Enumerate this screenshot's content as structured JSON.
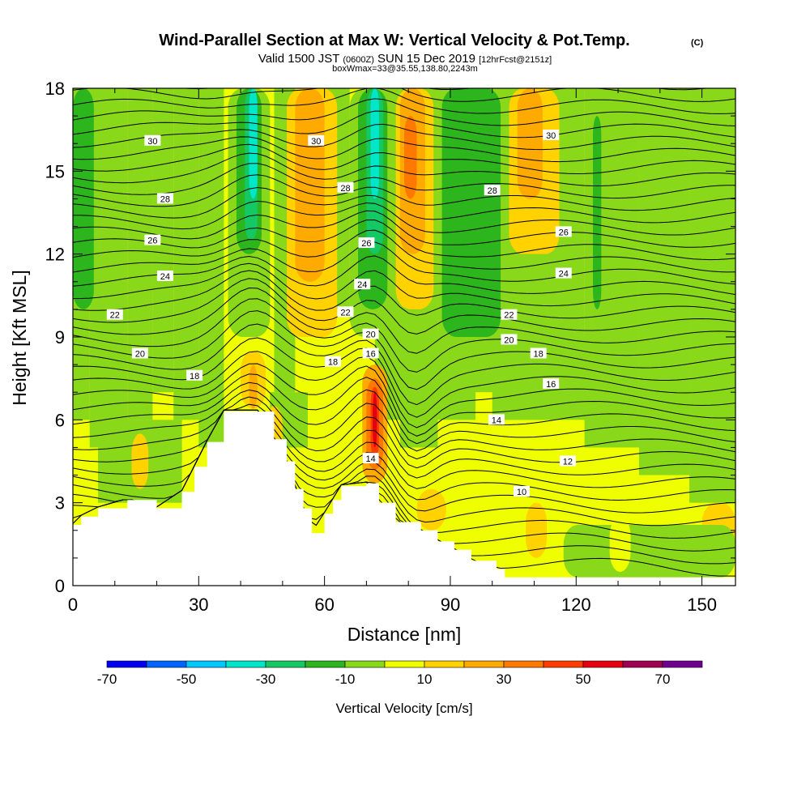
{
  "header": {
    "title": "Wind-Parallel Section at Max W: Vertical Velocity & Pot.Temp.",
    "copyright": "(C)",
    "valid_main": "Valid 1500 JST",
    "valid_utc": "(0600Z)",
    "valid_date": "SUN 15 Dec 2019",
    "forecast": "[12hrFcst@2151z]",
    "box_info": "boxWmax=33@35.55,138.80,2243m"
  },
  "chart_data": {
    "type": "heatmap",
    "xlabel": "Distance [nm]",
    "ylabel": "Height [Kft MSL]",
    "xlim": [
      0,
      158
    ],
    "ylim": [
      0,
      18
    ],
    "x_ticks": [
      "0",
      "30",
      "60",
      "90",
      "120",
      "150"
    ],
    "y_ticks": [
      "0",
      "3",
      "6",
      "9",
      "12",
      "15",
      "18"
    ],
    "x_minor_step": 10,
    "y_minor_step": 1,
    "colorbar": {
      "title": "Vertical Velocity [cm/s]",
      "levels": [
        -70,
        -60,
        -50,
        -40,
        -30,
        -20,
        -10,
        0,
        10,
        20,
        30,
        40,
        50,
        60,
        70,
        80
      ],
      "labels": [
        "-70",
        "-50",
        "-30",
        "-10",
        "10",
        "30",
        "50",
        "70"
      ],
      "colors": [
        "#0000f0",
        "#0064ff",
        "#00c8ff",
        "#00e6c8",
        "#14c864",
        "#2db51e",
        "#8ad81a",
        "#f0ff00",
        "#ffd200",
        "#ffaa00",
        "#ff7800",
        "#ff3c00",
        "#e6000f",
        "#a00050",
        "#700090"
      ]
    },
    "terrain_profile": [
      [
        0,
        2.2
      ],
      [
        2,
        2.5
      ],
      [
        6,
        2.8
      ],
      [
        13,
        3.1
      ],
      [
        20,
        2.8
      ],
      [
        26,
        3.4
      ],
      [
        29,
        4.3
      ],
      [
        32,
        5.2
      ],
      [
        36,
        6.3
      ],
      [
        45,
        6.3
      ],
      [
        48,
        5.3
      ],
      [
        51,
        4.5
      ],
      [
        53,
        3.5
      ],
      [
        55,
        2.8
      ],
      [
        57,
        1.9
      ],
      [
        60,
        2.6
      ],
      [
        62,
        3.1
      ],
      [
        64,
        3.6
      ],
      [
        70,
        3.7
      ],
      [
        73,
        3.0
      ],
      [
        77,
        2.3
      ],
      [
        83,
        2.0
      ],
      [
        87,
        1.6
      ],
      [
        91,
        1.3
      ],
      [
        95,
        0.9
      ],
      [
        101,
        0.6
      ],
      [
        103,
        0.3
      ],
      [
        158,
        0.3
      ]
    ],
    "theta_contour_labels": [
      {
        "text": "30",
        "x": 19,
        "y": 16.1
      },
      {
        "text": "30",
        "x": 58,
        "y": 16.1
      },
      {
        "text": "30",
        "x": 114,
        "y": 16.3
      },
      {
        "text": "28",
        "x": 22,
        "y": 14.0
      },
      {
        "text": "28",
        "x": 65,
        "y": 14.4
      },
      {
        "text": "28",
        "x": 100,
        "y": 14.3
      },
      {
        "text": "26",
        "x": 19,
        "y": 12.5
      },
      {
        "text": "26",
        "x": 70,
        "y": 12.4
      },
      {
        "text": "26",
        "x": 117,
        "y": 12.8
      },
      {
        "text": "24",
        "x": 22,
        "y": 11.2
      },
      {
        "text": "24",
        "x": 69,
        "y": 10.9
      },
      {
        "text": "24",
        "x": 117,
        "y": 11.3
      },
      {
        "text": "22",
        "x": 10,
        "y": 9.8
      },
      {
        "text": "22",
        "x": 65,
        "y": 9.9
      },
      {
        "text": "22",
        "x": 104,
        "y": 9.8
      },
      {
        "text": "20",
        "x": 16,
        "y": 8.4
      },
      {
        "text": "20",
        "x": 71,
        "y": 9.1
      },
      {
        "text": "20",
        "x": 104,
        "y": 8.9
      },
      {
        "text": "18",
        "x": 29,
        "y": 7.6
      },
      {
        "text": "18",
        "x": 62,
        "y": 8.1
      },
      {
        "text": "18",
        "x": 111,
        "y": 8.4
      },
      {
        "text": "16",
        "x": 71,
        "y": 8.4
      },
      {
        "text": "16",
        "x": 114,
        "y": 7.3
      },
      {
        "text": "14",
        "x": 101,
        "y": 6.0
      },
      {
        "text": "14",
        "x": 71,
        "y": 4.6
      },
      {
        "text": "12",
        "x": 118,
        "y": 4.5
      },
      {
        "text": "10",
        "x": 107,
        "y": 3.4
      }
    ]
  }
}
